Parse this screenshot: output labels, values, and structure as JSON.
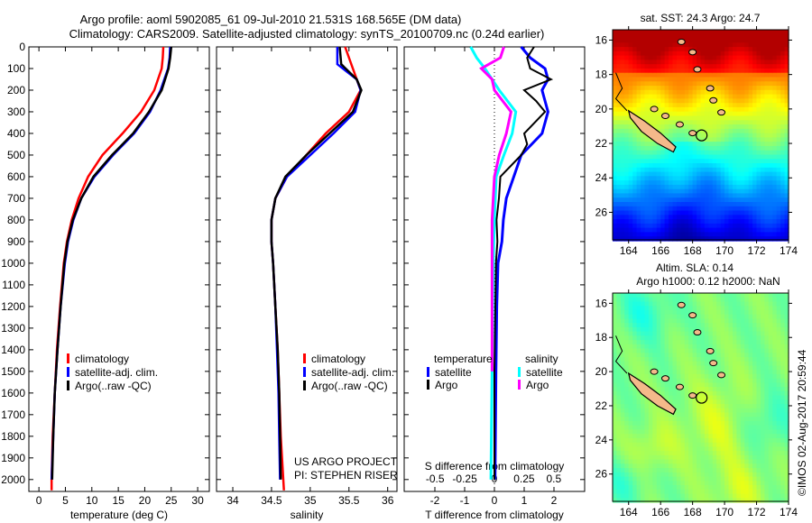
{
  "title": {
    "line1": "Argo profile: aoml 5902085_61 09-Jul-2010 21.531S 168.565E (DM data)",
    "line2": "Climatology: CARS2009. Satellite-adjusted climatology: synTS_20100709.nc (0.24d earlier)"
  },
  "credit": "©IMOS 02-Aug-2017 20:59:44",
  "project": {
    "line1": "US ARGO PROJECT",
    "line2": "PI: STEPHEN RISER"
  },
  "colors": {
    "climatology": "#ff0000",
    "satellite": "#0000ff",
    "argo": "#000000",
    "sal_satellite": "#00ffff",
    "sal_argo": "#ff00ff"
  },
  "chart_data": [
    {
      "type": "line",
      "id": "temperature",
      "xlabel": "temperature (deg C)",
      "ylabel": "depth",
      "xlim": [
        -1.9,
        32.2
      ],
      "ylim": [
        0,
        2055
      ],
      "xticks": [
        0,
        5,
        10,
        15,
        20,
        25,
        30
      ],
      "yticks": [
        0,
        100,
        200,
        300,
        400,
        500,
        600,
        700,
        800,
        900,
        1000,
        1100,
        1200,
        1300,
        1400,
        1500,
        1600,
        1700,
        1800,
        1900,
        2000
      ],
      "legend": [
        "climatology",
        "satellite-adj. clim.",
        "Argo(..raw -QC)"
      ],
      "series": [
        {
          "name": "climatology",
          "color": "#ff0000",
          "depth": [
            0,
            50,
            100,
            200,
            300,
            400,
            500,
            600,
            700,
            800,
            900,
            1000,
            1200,
            1400,
            1600,
            1800,
            2000,
            2050
          ],
          "values": [
            23.5,
            23.4,
            23.2,
            21.8,
            19.3,
            15.8,
            12.0,
            9.3,
            7.5,
            6.2,
            5.3,
            4.7,
            4.0,
            3.4,
            3.0,
            2.6,
            2.4,
            2.4
          ]
        },
        {
          "name": "satellite-adj. clim.",
          "color": "#0000ff",
          "depth": [
            0,
            50,
            100,
            200,
            300,
            400,
            500,
            600,
            700,
            800,
            900,
            1000,
            1200,
            1400,
            1600,
            1800,
            2000
          ],
          "values": [
            24.8,
            24.7,
            24.4,
            23.0,
            21.0,
            18.0,
            14.0,
            10.5,
            8.0,
            6.5,
            5.5,
            4.9,
            4.1,
            3.5,
            3.0,
            2.7,
            2.4
          ]
        },
        {
          "name": "Argo(..raw -QC)",
          "color": "#000000",
          "depth": [
            0,
            50,
            100,
            200,
            300,
            400,
            500,
            600,
            700,
            800,
            900,
            1000,
            1200,
            1400,
            1600,
            1800,
            2000
          ],
          "values": [
            25.0,
            24.8,
            24.5,
            23.2,
            20.8,
            17.8,
            13.8,
            10.3,
            8.0,
            6.4,
            5.4,
            4.8,
            4.1,
            3.5,
            3.0,
            2.7,
            2.5
          ]
        }
      ]
    },
    {
      "type": "line",
      "id": "salinity",
      "xlabel": "salinity",
      "xlim": [
        33.79,
        36.12
      ],
      "ylim": [
        0,
        2055
      ],
      "xticks": [
        34,
        34.5,
        35,
        35.5,
        36
      ],
      "legend": [
        "climatology",
        "satellite-adj. clim.",
        "Argo(..raw -QC)"
      ],
      "series": [
        {
          "name": "climatology",
          "color": "#ff0000",
          "depth": [
            0,
            100,
            200,
            300,
            400,
            500,
            600,
            700,
            800,
            900,
            1000,
            1200,
            1400,
            1600,
            1800,
            2050
          ],
          "values": [
            35.45,
            35.55,
            35.65,
            35.5,
            35.2,
            34.95,
            34.7,
            34.55,
            34.5,
            34.5,
            34.52,
            34.55,
            34.58,
            34.6,
            34.62,
            34.66
          ]
        },
        {
          "name": "satellite-adj. clim.",
          "color": "#0000ff",
          "depth": [
            0,
            80,
            150,
            200,
            300,
            400,
            500,
            600,
            700,
            800,
            900,
            1000,
            1200,
            1400,
            1600,
            1800,
            2000
          ],
          "values": [
            35.35,
            35.35,
            35.6,
            35.65,
            35.58,
            35.3,
            35.0,
            34.7,
            34.55,
            34.5,
            34.5,
            34.52,
            34.55,
            34.57,
            34.59,
            34.6,
            34.61
          ]
        },
        {
          "name": "Argo(..raw -QC)",
          "color": "#000000",
          "depth": [
            0,
            80,
            150,
            200,
            300,
            400,
            500,
            600,
            700,
            800,
            900,
            1000,
            1200,
            1400,
            1600,
            1800,
            2000
          ],
          "values": [
            35.38,
            35.4,
            35.6,
            35.66,
            35.55,
            35.25,
            34.95,
            34.68,
            34.55,
            34.5,
            34.5,
            34.52,
            34.55,
            34.58,
            34.6,
            34.61,
            34.62
          ]
        }
      ]
    },
    {
      "type": "line",
      "id": "difference",
      "xlabel": "T difference from climatology",
      "x2label": "S difference from climatology",
      "xlim": [
        -3.03,
        3.03
      ],
      "x2lim": [
        -0.76,
        0.76
      ],
      "xticks": [
        -2,
        -1,
        0,
        1,
        2
      ],
      "x2ticks": [
        -0.5,
        -0.25,
        0,
        0.25,
        0.5
      ],
      "x2ticklabels": [
        "-0.5",
        "-0.25",
        "0",
        "0.25",
        "0.5"
      ],
      "ylim": [
        0,
        2055
      ],
      "legend": {
        "temperature_title": "temperature",
        "salinity_title": "salinity",
        "satellite": "satellite",
        "argo": "Argo"
      },
      "series": [
        {
          "name": "T satellite",
          "axis": "T",
          "color": "#0000ff",
          "depth": [
            0,
            50,
            100,
            150,
            200,
            300,
            400,
            500,
            600,
            700,
            800,
            900,
            1000,
            1200,
            1500,
            2000
          ],
          "values": [
            0.9,
            1.2,
            1.7,
            1.8,
            1.6,
            1.8,
            1.6,
            0.9,
            0.65,
            0.4,
            0.3,
            0.25,
            0.12,
            0.08,
            0.05,
            0.02
          ]
        },
        {
          "name": "T Argo",
          "axis": "T",
          "color": "#000000",
          "depth": [
            0,
            50,
            100,
            150,
            200,
            250,
            300,
            400,
            450,
            500,
            600,
            700,
            800,
            900,
            1000,
            1500,
            2000
          ],
          "values": [
            1.33,
            1.1,
            1.2,
            1.9,
            1.0,
            1.4,
            1.7,
            1.0,
            1.1,
            0.9,
            0.2,
            0.15,
            0.07,
            0.1,
            0.05,
            0.0,
            0.0
          ]
        },
        {
          "name": "S satellite",
          "axis": "S",
          "color": "#00ffff",
          "depth": [
            0,
            50,
            100,
            150,
            200,
            300,
            400,
            500,
            600,
            800,
            1000,
            1500,
            2000
          ],
          "values": [
            -0.2,
            -0.15,
            -0.08,
            -0.02,
            0.04,
            0.18,
            0.15,
            0.08,
            0.015,
            0.0,
            -0.01,
            -0.02,
            -0.03
          ]
        },
        {
          "name": "S Argo",
          "axis": "S",
          "color": "#ff00ff",
          "depth": [
            0,
            50,
            100,
            150,
            200,
            300,
            400,
            500,
            600,
            800,
            1000,
            1500
          ],
          "values": [
            0.08,
            0.05,
            -0.11,
            -0.02,
            0.0,
            0.14,
            0.1,
            0.04,
            0.0,
            -0.02,
            -0.02,
            -0.02
          ]
        }
      ]
    },
    {
      "type": "heatmap",
      "id": "sst-map",
      "title": "sat. SST: 24.3  Argo: 24.7",
      "xlim": [
        163,
        174
      ],
      "ylim": [
        -27.6,
        -15.4
      ],
      "xticks": [
        164,
        166,
        168,
        170,
        172,
        174
      ],
      "yticks": [
        -16,
        -18,
        -20,
        -22,
        -24,
        -26
      ],
      "marker": {
        "lon": 168.565,
        "lat": -21.531
      }
    },
    {
      "type": "heatmap",
      "id": "sla-map",
      "title": "Altim. SLA: 0.14",
      "subtitle": "Argo h1000: 0.12 h2000: NaN",
      "xlim": [
        163,
        174
      ],
      "ylim": [
        -27.6,
        -15.4
      ],
      "xticks": [
        164,
        166,
        168,
        170,
        172,
        174
      ],
      "yticks": [
        -16,
        -18,
        -20,
        -22,
        -24,
        -26
      ],
      "marker": {
        "lon": 168.565,
        "lat": -21.531
      }
    }
  ]
}
